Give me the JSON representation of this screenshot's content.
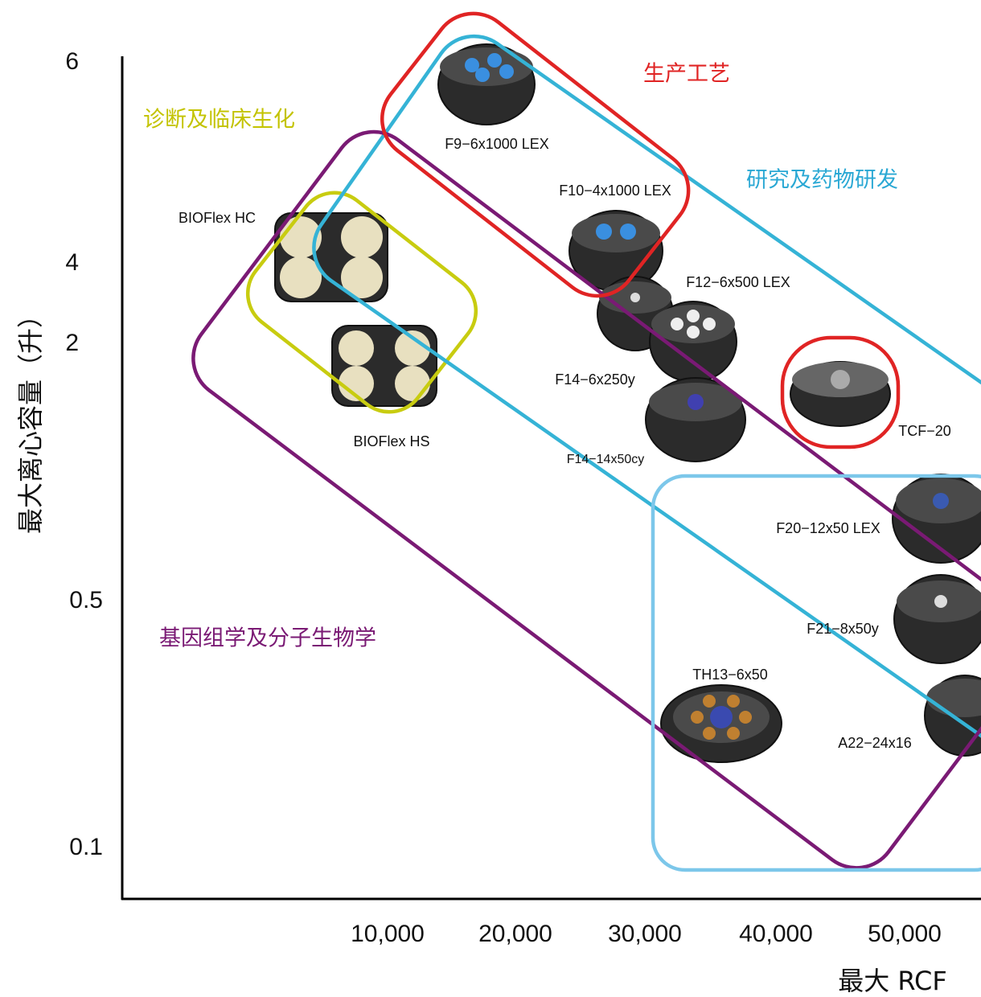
{
  "axes": {
    "y_title": "最大离心容量（升）",
    "x_title": "最大 RCF",
    "y_ticks": [
      "6",
      "4",
      "2",
      "0.5",
      "0.1"
    ],
    "x_ticks": [
      "10,000",
      "20,000",
      "30,000",
      "40,000",
      "50,000"
    ]
  },
  "regions": [
    "诊断及临床生化",
    "生产工艺",
    "研究及药物研发",
    "基因组学及分子生物学"
  ],
  "rotors": [
    "F9−6x1000 LEX",
    "F10−4x1000 LEX",
    "F12−6x500 LEX",
    "F14−6x250y",
    "F14−14x50cy",
    "BIOFlex HC",
    "BIOFlex HS",
    "TCF−20",
    "F20−12x50 LEX",
    "F21−8x50y",
    "TH13−6x50",
    "A22−24x16"
  ]
}
